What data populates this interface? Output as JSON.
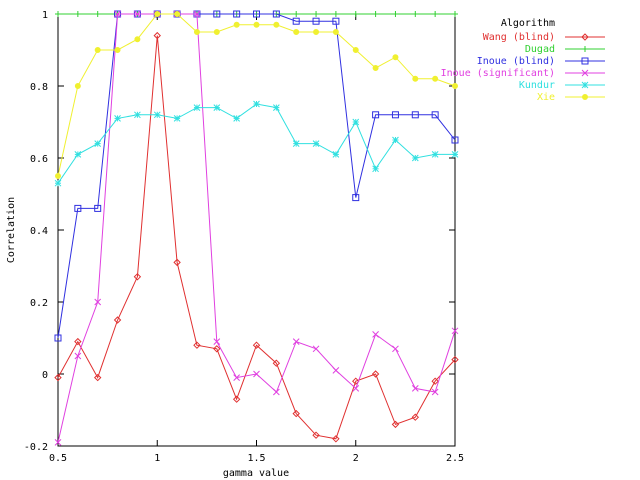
{
  "chart_data": {
    "type": "line",
    "xlabel": "gamma value",
    "ylabel": "Correlation",
    "xlim": [
      0.5,
      2.5
    ],
    "ylim": [
      -0.2,
      1
    ],
    "xticks": [
      0.5,
      1,
      1.5,
      2,
      2.5
    ],
    "xtick_labels": [
      "0.5",
      "1",
      "1.5",
      "2",
      "2.5"
    ],
    "yticks": [
      -0.2,
      0,
      0.2,
      0.4,
      0.6,
      0.8,
      1
    ],
    "ytick_labels": [
      "-0.2",
      "0",
      "0.2",
      "0.4",
      "0.6",
      "0.8",
      "1"
    ],
    "grid": false,
    "legend_title": "Algorithm",
    "legend_position": "top-right",
    "x": [
      0.5,
      0.6,
      0.7,
      0.8,
      0.9,
      1.0,
      1.1,
      1.2,
      1.3,
      1.4,
      1.5,
      1.6,
      1.7,
      1.8,
      1.9,
      2.0,
      2.1,
      2.2,
      2.3,
      2.4,
      2.5
    ],
    "series": [
      {
        "name": "Wang (blind)",
        "color": "#e03030",
        "marker": "diamond",
        "values": [
          -0.01,
          0.09,
          -0.01,
          0.15,
          0.27,
          0.94,
          0.31,
          0.08,
          0.07,
          -0.07,
          0.08,
          0.03,
          -0.11,
          -0.17,
          -0.18,
          -0.02,
          0.0,
          -0.14,
          -0.12,
          -0.02,
          0.04
        ]
      },
      {
        "name": "Dugad",
        "color": "#30d030",
        "marker": "plus",
        "values": [
          1,
          1,
          1,
          1,
          1,
          1,
          1,
          1,
          1,
          1,
          1,
          1,
          1,
          1,
          1,
          1,
          1,
          1,
          1,
          1,
          1
        ]
      },
      {
        "name": "Inoue (blind)",
        "color": "#3030e0",
        "marker": "square",
        "values": [
          0.1,
          0.46,
          0.46,
          1,
          1,
          1,
          1,
          1,
          1,
          1,
          1,
          1,
          0.98,
          0.98,
          0.98,
          0.49,
          0.72,
          0.72,
          0.72,
          0.72,
          0.65
        ]
      },
      {
        "name": "Inoue (significant)",
        "color": "#e040e0",
        "marker": "x",
        "values": [
          -0.19,
          0.05,
          0.2,
          1,
          1,
          1,
          1,
          1,
          0.09,
          -0.01,
          0.0,
          -0.05,
          0.09,
          0.07,
          0.01,
          -0.04,
          0.11,
          0.07,
          -0.04,
          -0.05,
          0.12
        ]
      },
      {
        "name": "Kundur",
        "color": "#30e0e0",
        "marker": "star",
        "values": [
          0.53,
          0.61,
          0.64,
          0.71,
          0.72,
          0.72,
          0.71,
          0.74,
          0.74,
          0.71,
          0.75,
          0.74,
          0.64,
          0.64,
          0.61,
          0.7,
          0.57,
          0.65,
          0.6,
          0.61,
          0.61
        ]
      },
      {
        "name": "Xie",
        "color": "#f0f030",
        "marker": "circle",
        "values": [
          0.55,
          0.8,
          0.9,
          0.9,
          0.93,
          1.0,
          1.0,
          0.95,
          0.95,
          0.97,
          0.97,
          0.97,
          0.95,
          0.95,
          0.95,
          0.9,
          0.85,
          0.88,
          0.82,
          0.82,
          0.8
        ]
      }
    ]
  }
}
